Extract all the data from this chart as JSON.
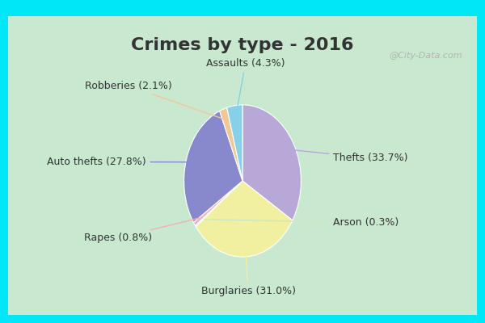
{
  "title": "Crimes by type - 2016",
  "slices": [
    {
      "label": "Thefts (33.7%)",
      "value": 33.7,
      "color": "#b8a8d8"
    },
    {
      "label": "Burglaries (31.0%)",
      "value": 31.0,
      "color": "#f0f0a0"
    },
    {
      "label": "Arson (0.3%)",
      "value": 0.3,
      "color": "#c8e8c8"
    },
    {
      "label": "Rapes (0.8%)",
      "value": 0.8,
      "color": "#f0b0b8"
    },
    {
      "label": "Auto thefts (27.8%)",
      "value": 27.8,
      "color": "#8888cc"
    },
    {
      "label": "Robberies (2.1%)",
      "value": 2.1,
      "color": "#f0c898"
    },
    {
      "label": "Assaults (4.3%)",
      "value": 4.3,
      "color": "#88d0e8"
    }
  ],
  "border_color": "#00e8f8",
  "border_width": 10,
  "bg_color_top_left": "#c8e8d8",
  "bg_color_bottom": "#d8f0e0",
  "title_fontsize": 16,
  "label_fontsize": 9,
  "watermark": "@City-Data.com",
  "title_color": "#333333"
}
